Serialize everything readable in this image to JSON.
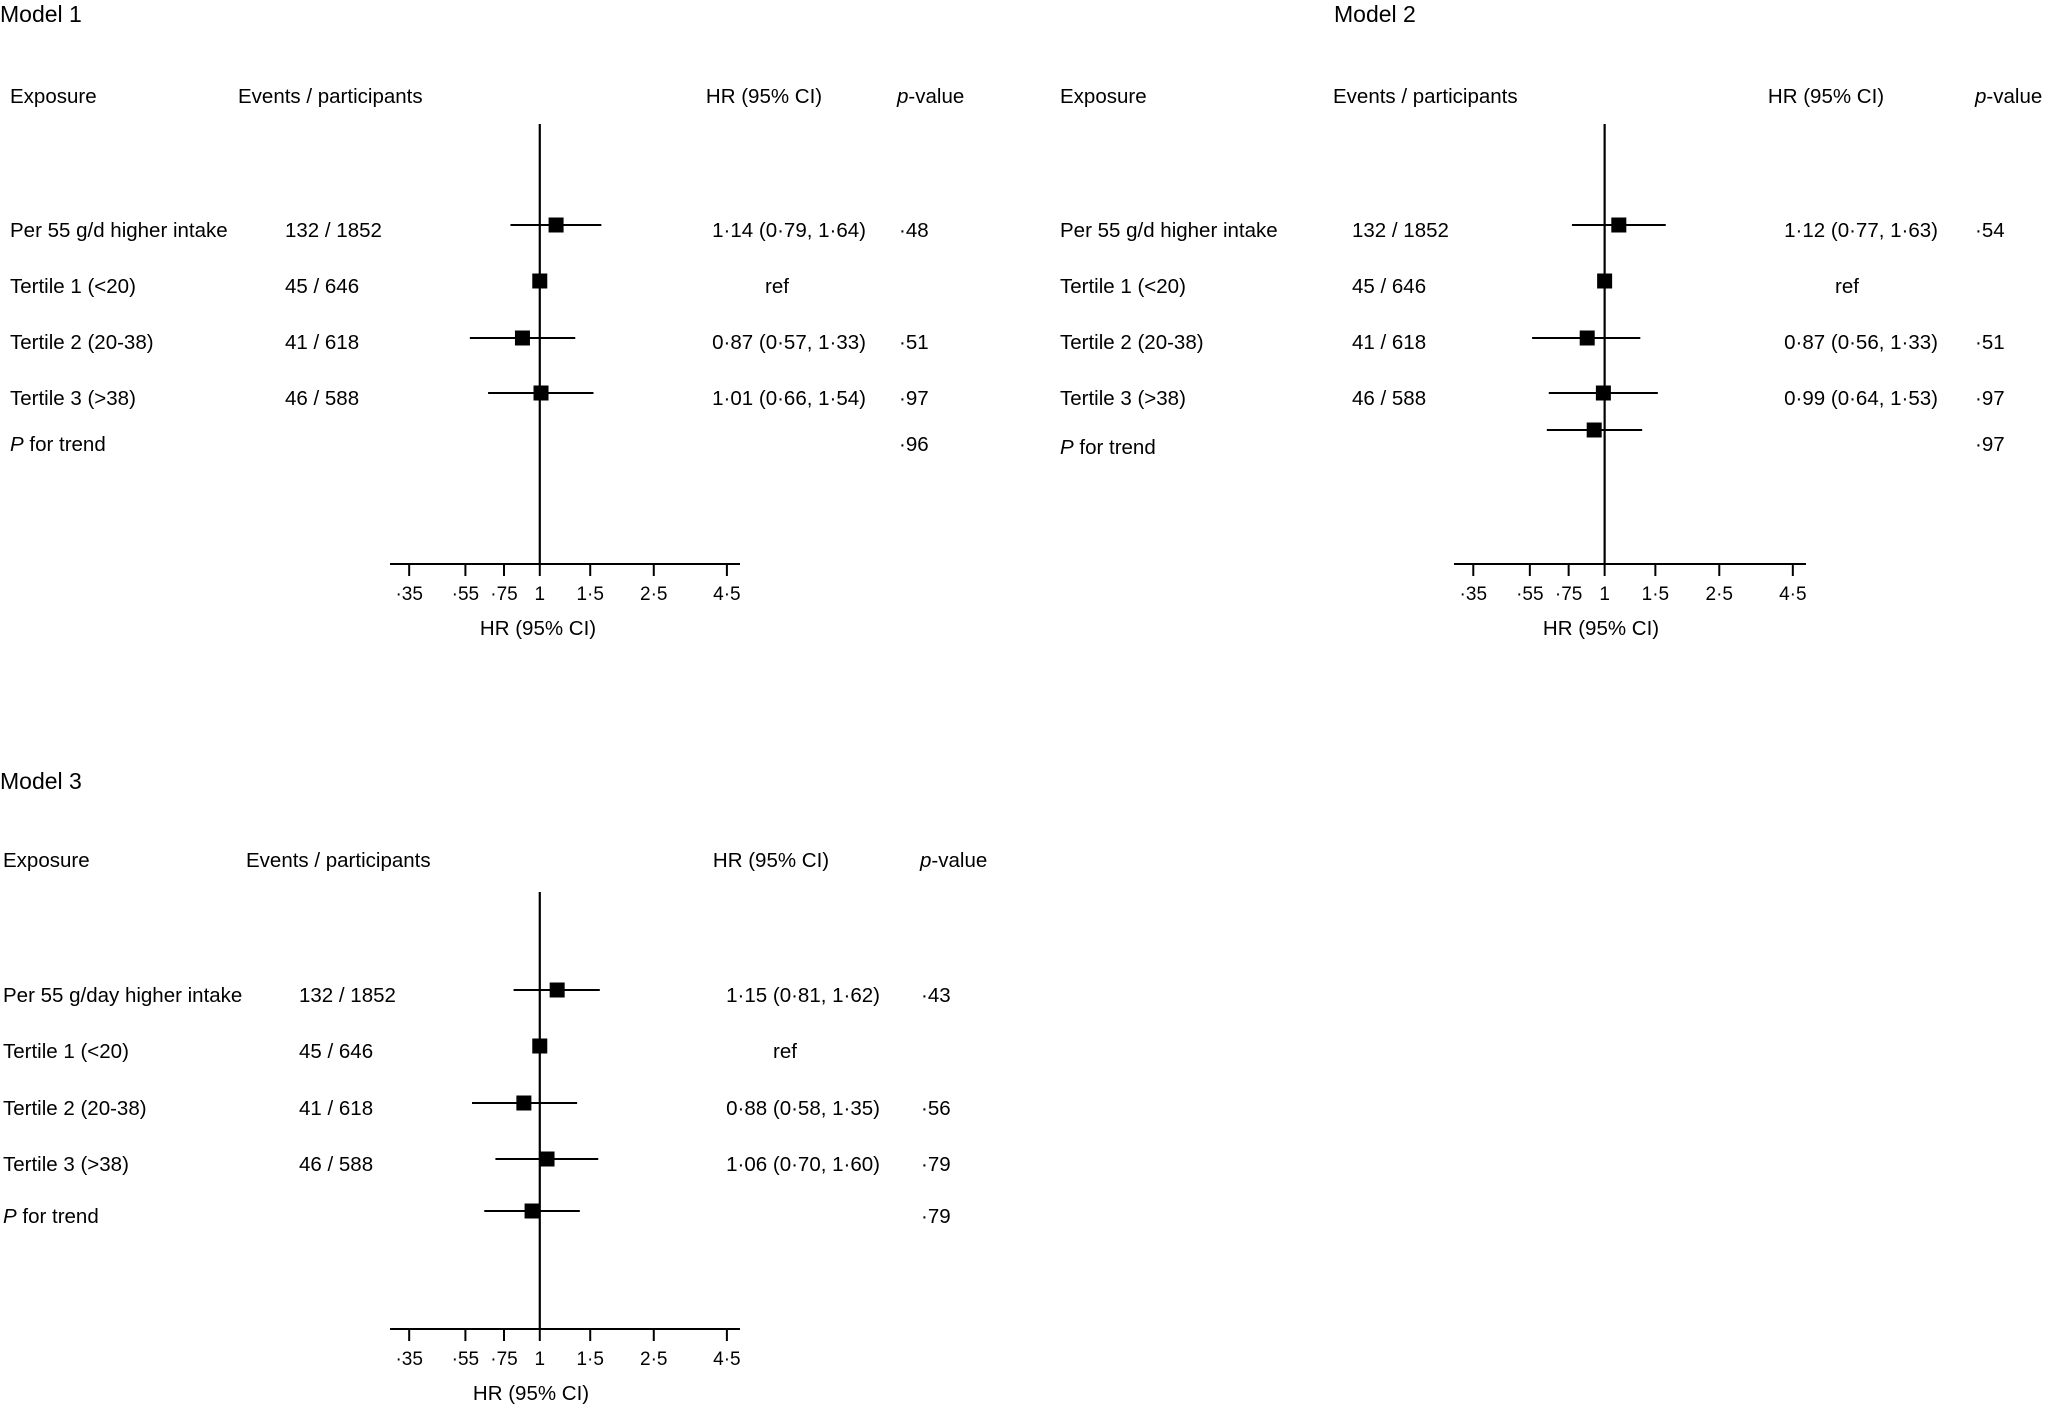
{
  "figure": {
    "axis_title": "HR (95% CI)",
    "axis_ticks": [
      "·35",
      "·55",
      "·75",
      "1",
      "1·5",
      "2·5",
      "4·5"
    ],
    "column_headers": {
      "exposure": "Exposure",
      "events": "Events / participants",
      "hr": "HR (95% CI)",
      "p_italic": "p",
      "p_rest": "-value"
    },
    "trend_label_italic": "P",
    "trend_label_rest": " for trend"
  },
  "chart_data": [
    {
      "type": "forest",
      "title": "Model 1",
      "xlabel": "HR (95% CI)",
      "x_scale": "log",
      "xlim": [
        0.3,
        5
      ],
      "reference_line": 1,
      "x_ticks": [
        0.35,
        0.55,
        0.75,
        1,
        1.5,
        2.5,
        4.5
      ],
      "rows": [
        {
          "label": "Per 55 g/d higher intake",
          "events": "132 / 1852",
          "hr_text": "1·14 (0·79, 1·64)",
          "p": "·48",
          "hr": 1.14,
          "lo": 0.79,
          "hi": 1.64
        },
        {
          "label": "Tertile 1 (<20)",
          "events": "45 / 646",
          "hr_text": "ref",
          "p": "",
          "hr": 1.0,
          "lo": null,
          "hi": null
        },
        {
          "label": "Tertile 2 (20-38)",
          "events": "41 / 618",
          "hr_text": "0·87 (0·57, 1·33)",
          "p": "·51",
          "hr": 0.87,
          "lo": 0.57,
          "hi": 1.33
        },
        {
          "label": "Tertile 3 (>38)",
          "events": "46 / 588",
          "hr_text": "1·01 (0·66, 1·54)",
          "p": "·97",
          "hr": 1.01,
          "lo": 0.66,
          "hi": 1.54
        },
        {
          "label": "P for trend",
          "trend": true,
          "events": "",
          "hr_text": "",
          "p": "·96",
          "hr": null,
          "lo": null,
          "hi": null
        }
      ]
    },
    {
      "type": "forest",
      "title": "Model 2",
      "xlabel": "HR (95% CI)",
      "x_scale": "log",
      "xlim": [
        0.3,
        5
      ],
      "reference_line": 1,
      "x_ticks": [
        0.35,
        0.55,
        0.75,
        1,
        1.5,
        2.5,
        4.5
      ],
      "rows": [
        {
          "label": "Per 55 g/d higher intake",
          "events": "132 / 1852",
          "hr_text": "1·12 (0·77, 1·63)",
          "p": "·54",
          "hr": 1.12,
          "lo": 0.77,
          "hi": 1.63
        },
        {
          "label": "Tertile 1 (<20)",
          "events": "45 / 646",
          "hr_text": "ref",
          "p": "",
          "hr": 1.0,
          "lo": null,
          "hi": null
        },
        {
          "label": "Tertile 2 (20-38)",
          "events": "41 / 618",
          "hr_text": "0·87 (0·56, 1·33)",
          "p": "·51",
          "hr": 0.87,
          "lo": 0.56,
          "hi": 1.33
        },
        {
          "label": "Tertile 3 (>38)",
          "events": "46 / 588",
          "hr_text": "0·99 (0·64, 1·53)",
          "p": "·97",
          "hr": 0.99,
          "lo": 0.64,
          "hi": 1.53
        },
        {
          "label": "P for trend",
          "trend": true,
          "events": "",
          "hr_text": "",
          "p": "·97",
          "hr": 0.92,
          "lo": 0.63,
          "hi": 1.35
        }
      ]
    },
    {
      "type": "forest",
      "title": "Model 3",
      "xlabel": "HR (95% CI)",
      "x_scale": "log",
      "xlim": [
        0.3,
        5
      ],
      "reference_line": 1,
      "x_ticks": [
        0.35,
        0.55,
        0.75,
        1,
        1.5,
        2.5,
        4.5
      ],
      "rows": [
        {
          "label": "Per 55 g/day higher intake",
          "events": "132 / 1852",
          "hr_text": "1·15 (0·81, 1·62)",
          "p": "·43",
          "hr": 1.15,
          "lo": 0.81,
          "hi": 1.62
        },
        {
          "label": "Tertile 1 (<20)",
          "events": "45 / 646",
          "hr_text": "ref",
          "p": "",
          "hr": 1.0,
          "lo": null,
          "hi": null
        },
        {
          "label": "Tertile 2 (20-38)",
          "events": "41 / 618",
          "hr_text": "0·88 (0·58, 1·35)",
          "p": "·56",
          "hr": 0.88,
          "lo": 0.58,
          "hi": 1.35
        },
        {
          "label": "Tertile 3 (>38)",
          "events": "46 / 588",
          "hr_text": "1·06 (0·70, 1·60)",
          "p": "·79",
          "hr": 1.06,
          "lo": 0.7,
          "hi": 1.6
        },
        {
          "label": "P for trend",
          "trend": true,
          "events": "",
          "hr_text": "",
          "p": "·79",
          "hr": 0.94,
          "lo": 0.64,
          "hi": 1.38
        }
      ]
    }
  ]
}
